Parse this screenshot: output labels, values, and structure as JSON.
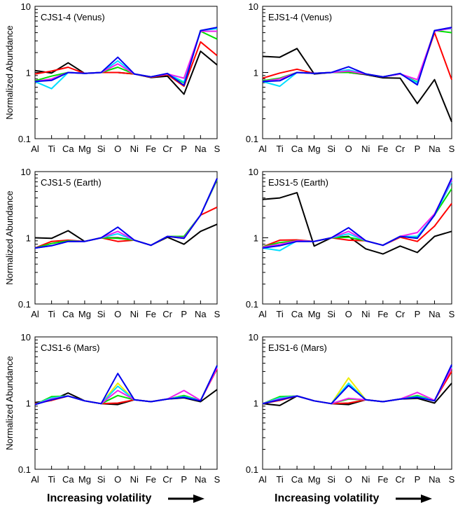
{
  "footer": {
    "label": "Increasing volatility",
    "arrow_icon": "right-arrow-icon"
  },
  "chart_data": [
    {
      "type": "line",
      "title": "CJS1-4 (Venus)",
      "ylabel": "Normalized Abundance",
      "yscale": "log",
      "ylim": [
        0.1,
        10
      ],
      "yticks": [
        "0.1",
        "1",
        "10"
      ],
      "categories": [
        "Al",
        "Ti",
        "Ca",
        "Mg",
        "Si",
        "O",
        "Ni",
        "Fe",
        "Cr",
        "P",
        "Na",
        "S"
      ],
      "series": [
        {
          "name": "black",
          "color": "#000000",
          "values": [
            1.07,
            0.98,
            1.4,
            0.97,
            1.0,
            1.0,
            0.95,
            0.84,
            0.88,
            0.47,
            2.1,
            1.3
          ]
        },
        {
          "name": "red",
          "color": "#ff0000",
          "values": [
            0.95,
            1.05,
            1.2,
            0.97,
            1.0,
            1.0,
            0.95,
            0.85,
            0.93,
            0.62,
            2.9,
            1.8
          ]
        },
        {
          "name": "green",
          "color": "#00dd00",
          "values": [
            0.75,
            0.88,
            1.0,
            0.97,
            1.0,
            1.2,
            0.95,
            0.86,
            0.95,
            0.7,
            4.2,
            3.2
          ]
        },
        {
          "name": "cyan",
          "color": "#00ddff",
          "values": [
            0.73,
            0.57,
            1.0,
            0.97,
            1.0,
            1.5,
            0.95,
            0.86,
            0.96,
            0.72,
            4.3,
            4.6
          ]
        },
        {
          "name": "magenta",
          "color": "#ee22ee",
          "values": [
            0.73,
            0.8,
            1.0,
            0.97,
            1.0,
            1.35,
            0.95,
            0.86,
            0.95,
            0.82,
            4.2,
            4.2
          ]
        },
        {
          "name": "blue",
          "color": "#0000ee",
          "values": [
            0.73,
            0.76,
            1.0,
            0.97,
            1.0,
            1.7,
            0.95,
            0.86,
            0.97,
            0.64,
            4.3,
            4.8
          ]
        }
      ]
    },
    {
      "type": "line",
      "title": "EJS1-4 (Venus)",
      "ylabel": "",
      "yscale": "log",
      "ylim": [
        0.1,
        10
      ],
      "yticks": [
        "0.1",
        "1",
        "10"
      ],
      "categories": [
        "Al",
        "Ti",
        "Ca",
        "Mg",
        "Si",
        "O",
        "Ni",
        "Fe",
        "Cr",
        "P",
        "Na",
        "S"
      ],
      "series": [
        {
          "name": "black",
          "color": "#000000",
          "values": [
            1.75,
            1.7,
            2.3,
            0.95,
            1.0,
            1.0,
            0.93,
            0.83,
            0.82,
            0.34,
            0.78,
            0.18
          ]
        },
        {
          "name": "red",
          "color": "#ff0000",
          "values": [
            0.82,
            0.98,
            1.12,
            0.97,
            1.0,
            1.0,
            0.95,
            0.86,
            0.95,
            0.7,
            4.0,
            0.78
          ]
        },
        {
          "name": "green",
          "color": "#00dd00",
          "values": [
            0.75,
            0.82,
            1.0,
            0.97,
            1.0,
            1.0,
            0.95,
            0.86,
            0.95,
            0.72,
            4.3,
            4.0
          ]
        },
        {
          "name": "cyan",
          "color": "#00ddff",
          "values": [
            0.73,
            0.62,
            1.0,
            0.97,
            1.0,
            1.1,
            0.95,
            0.86,
            0.95,
            0.7,
            4.3,
            4.6
          ]
        },
        {
          "name": "magenta",
          "color": "#ee22ee",
          "values": [
            0.73,
            0.8,
            1.0,
            0.97,
            1.0,
            1.05,
            0.95,
            0.86,
            0.95,
            0.78,
            4.2,
            4.7
          ]
        },
        {
          "name": "blue",
          "color": "#0000ee",
          "values": [
            0.73,
            0.75,
            1.0,
            0.97,
            1.0,
            1.22,
            0.95,
            0.86,
            0.97,
            0.65,
            4.3,
            4.8
          ]
        }
      ]
    },
    {
      "type": "line",
      "title": "CJS1-5 (Earth)",
      "ylabel": "Normalized Abundance",
      "yscale": "log",
      "ylim": [
        0.1,
        10
      ],
      "yticks": [
        "0.1",
        "1",
        "10"
      ],
      "categories": [
        "Al",
        "Ti",
        "Ca",
        "Mg",
        "Si",
        "O",
        "Ni",
        "Fe",
        "Cr",
        "P",
        "Na",
        "S"
      ],
      "series": [
        {
          "name": "black",
          "color": "#000000",
          "values": [
            1.0,
            0.98,
            1.28,
            0.88,
            1.0,
            1.0,
            0.92,
            0.77,
            1.02,
            0.8,
            1.25,
            1.6
          ]
        },
        {
          "name": "red",
          "color": "#ff0000",
          "values": [
            0.7,
            0.88,
            0.92,
            0.88,
            1.0,
            0.88,
            0.92,
            0.77,
            1.05,
            0.98,
            2.2,
            2.9
          ]
        },
        {
          "name": "green",
          "color": "#00dd00",
          "values": [
            0.7,
            0.82,
            0.9,
            0.88,
            1.0,
            0.98,
            0.92,
            0.77,
            1.05,
            1.05,
            2.2,
            7.5
          ]
        },
        {
          "name": "cyan",
          "color": "#00ddff",
          "values": [
            0.7,
            0.76,
            0.88,
            0.88,
            1.0,
            1.15,
            0.92,
            0.77,
            1.05,
            1.0,
            2.2,
            7.8
          ]
        },
        {
          "name": "magenta",
          "color": "#ee22ee",
          "values": [
            0.7,
            0.76,
            0.88,
            0.88,
            1.0,
            1.25,
            0.92,
            0.77,
            1.05,
            1.0,
            2.2,
            7.8
          ]
        },
        {
          "name": "blue",
          "color": "#0000ee",
          "values": [
            0.7,
            0.76,
            0.88,
            0.88,
            1.0,
            1.45,
            0.92,
            0.77,
            1.05,
            0.98,
            2.2,
            7.9
          ]
        }
      ]
    },
    {
      "type": "line",
      "title": "EJS1-5 (Earth)",
      "ylabel": "",
      "yscale": "log",
      "ylim": [
        0.1,
        10
      ],
      "yticks": [
        "0.1",
        "1",
        "10"
      ],
      "categories": [
        "Al",
        "Ti",
        "Ca",
        "Mg",
        "Si",
        "O",
        "Ni",
        "Fe",
        "Cr",
        "P",
        "Na",
        "S"
      ],
      "series": [
        {
          "name": "black",
          "color": "#000000",
          "values": [
            3.8,
            4.0,
            4.8,
            0.75,
            1.0,
            1.05,
            0.68,
            0.57,
            0.75,
            0.6,
            1.05,
            1.25
          ]
        },
        {
          "name": "red",
          "color": "#ff0000",
          "values": [
            0.73,
            0.92,
            0.93,
            0.88,
            1.0,
            0.92,
            0.9,
            0.77,
            1.02,
            0.88,
            1.5,
            3.3
          ]
        },
        {
          "name": "green",
          "color": "#00dd00",
          "values": [
            0.73,
            0.85,
            0.9,
            0.88,
            1.0,
            1.02,
            0.9,
            0.77,
            1.05,
            1.0,
            2.2,
            5.5
          ]
        },
        {
          "name": "cyan",
          "color": "#00ddff",
          "values": [
            0.7,
            0.64,
            0.9,
            0.88,
            1.0,
            1.15,
            0.9,
            0.77,
            1.05,
            1.05,
            2.2,
            7.0
          ]
        },
        {
          "name": "magenta",
          "color": "#ee22ee",
          "values": [
            0.72,
            0.8,
            0.9,
            0.88,
            1.0,
            1.25,
            0.9,
            0.77,
            1.05,
            1.2,
            2.3,
            7.5
          ]
        },
        {
          "name": "blue",
          "color": "#0000ee",
          "values": [
            0.7,
            0.76,
            0.88,
            0.88,
            1.0,
            1.42,
            0.9,
            0.77,
            1.05,
            0.98,
            2.2,
            8.0
          ]
        }
      ]
    },
    {
      "type": "line",
      "title": "CJS1-6 (Mars)",
      "ylabel": "Normalized Abundance",
      "yscale": "log",
      "ylim": [
        0.1,
        10
      ],
      "yticks": [
        "0.1",
        "1",
        "10"
      ],
      "categories": [
        "Al",
        "Ti",
        "Ca",
        "Mg",
        "Si",
        "O",
        "Ni",
        "Fe",
        "Cr",
        "P",
        "Na",
        "S"
      ],
      "series": [
        {
          "name": "black",
          "color": "#000000",
          "values": [
            1.02,
            1.1,
            1.42,
            1.08,
            0.98,
            0.95,
            1.12,
            1.05,
            1.15,
            1.2,
            1.05,
            1.6
          ]
        },
        {
          "name": "red",
          "color": "#ff0000",
          "values": [
            0.98,
            1.1,
            1.28,
            1.08,
            0.98,
            1.0,
            1.12,
            1.05,
            1.15,
            1.25,
            1.1,
            3.3
          ]
        },
        {
          "name": "green",
          "color": "#00dd00",
          "values": [
            0.95,
            1.25,
            1.28,
            1.08,
            0.98,
            1.3,
            1.12,
            1.05,
            1.15,
            1.3,
            1.1,
            3.6
          ]
        },
        {
          "name": "yellow",
          "color": "#eeee00",
          "values": [
            0.95,
            1.2,
            1.28,
            1.08,
            0.98,
            2.0,
            1.12,
            1.05,
            1.15,
            1.25,
            1.1,
            3.5
          ]
        },
        {
          "name": "cyan",
          "color": "#00ddff",
          "values": [
            0.95,
            1.2,
            1.28,
            1.08,
            0.98,
            1.8,
            1.12,
            1.05,
            1.15,
            1.25,
            1.1,
            3.5
          ]
        },
        {
          "name": "magenta",
          "color": "#ee22ee",
          "values": [
            0.95,
            1.15,
            1.28,
            1.08,
            0.98,
            1.55,
            1.12,
            1.05,
            1.15,
            1.55,
            1.1,
            3.4
          ]
        },
        {
          "name": "blue",
          "color": "#0000ee",
          "values": [
            0.95,
            1.12,
            1.28,
            1.08,
            0.98,
            2.8,
            1.12,
            1.05,
            1.15,
            1.22,
            1.08,
            3.7
          ]
        }
      ]
    },
    {
      "type": "line",
      "title": "EJS1-6 (Mars)",
      "ylabel": "",
      "yscale": "log",
      "ylim": [
        0.1,
        10
      ],
      "yticks": [
        "0.1",
        "1",
        "10"
      ],
      "categories": [
        "Al",
        "Ti",
        "Ca",
        "Mg",
        "Si",
        "O",
        "Ni",
        "Fe",
        "Cr",
        "P",
        "Na",
        "S"
      ],
      "series": [
        {
          "name": "black",
          "color": "#000000",
          "values": [
            0.98,
            0.92,
            1.28,
            1.08,
            0.98,
            0.95,
            1.12,
            1.05,
            1.15,
            1.18,
            1.0,
            2.0
          ]
        },
        {
          "name": "red",
          "color": "#ff0000",
          "values": [
            0.98,
            1.1,
            1.28,
            1.08,
            0.98,
            1.0,
            1.12,
            1.05,
            1.15,
            1.25,
            1.1,
            3.0
          ]
        },
        {
          "name": "green",
          "color": "#00dd00",
          "values": [
            0.98,
            1.25,
            1.28,
            1.08,
            0.98,
            1.15,
            1.12,
            1.05,
            1.15,
            1.3,
            1.1,
            3.4
          ]
        },
        {
          "name": "yellow",
          "color": "#eeee00",
          "values": [
            0.98,
            1.2,
            1.28,
            1.08,
            0.98,
            2.4,
            1.12,
            1.05,
            1.15,
            1.25,
            1.1,
            3.5
          ]
        },
        {
          "name": "cyan",
          "color": "#00ddff",
          "values": [
            0.98,
            1.2,
            1.28,
            1.08,
            0.98,
            2.0,
            1.12,
            1.05,
            1.15,
            1.25,
            1.1,
            3.5
          ]
        },
        {
          "name": "magenta",
          "color": "#ee22ee",
          "values": [
            0.98,
            1.15,
            1.28,
            1.08,
            0.98,
            1.18,
            1.12,
            1.05,
            1.15,
            1.45,
            1.1,
            3.4
          ]
        },
        {
          "name": "blue",
          "color": "#0000ee",
          "values": [
            0.98,
            1.12,
            1.28,
            1.08,
            0.98,
            1.85,
            1.12,
            1.05,
            1.15,
            1.22,
            1.08,
            3.8
          ]
        }
      ]
    }
  ]
}
